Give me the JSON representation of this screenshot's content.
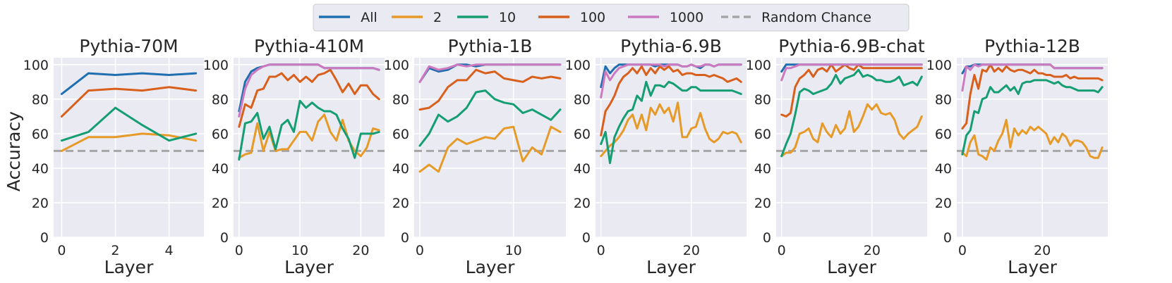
{
  "chart_data": {
    "type": "line",
    "ylabel": "Accuracy",
    "xlabel": "Layer",
    "ylim": [
      0,
      104
    ],
    "yticks": [
      0,
      20,
      40,
      60,
      80,
      100
    ],
    "grid": true,
    "legend_position": "top-center",
    "baseline": {
      "name": "Random Chance",
      "value": 50,
      "color": "#a6a6a6",
      "style": "dashed"
    },
    "series_styles": [
      {
        "key": "all",
        "name": "All",
        "color": "#1f6fb0"
      },
      {
        "key": "s2",
        "name": "2",
        "color": "#e69a28"
      },
      {
        "key": "s10",
        "name": "10",
        "color": "#149e72"
      },
      {
        "key": "s100",
        "name": "100",
        "color": "#d8601c"
      },
      {
        "key": "s1000",
        "name": "1000",
        "color": "#cc79c0"
      }
    ],
    "panels": [
      {
        "title": "Pythia-70M",
        "xlim": [
          -0.3,
          5.3
        ],
        "xticks": [
          0,
          2,
          4
        ],
        "x": [
          0,
          1,
          2,
          3,
          4,
          5
        ],
        "series": {
          "all": [
            83,
            95,
            94,
            95,
            94,
            95
          ],
          "s2": [
            50,
            58,
            58,
            60,
            59,
            56
          ],
          "s10": [
            56,
            61,
            75,
            65,
            56,
            60
          ],
          "s100": [
            70,
            85,
            86,
            85,
            87,
            85
          ],
          "s1000": null
        }
      },
      {
        "title": "Pythia-410M",
        "xlim": [
          -0.9,
          23.9
        ],
        "xticks": [
          0,
          10,
          20
        ],
        "x": [
          0,
          1,
          2,
          3,
          4,
          5,
          6,
          7,
          8,
          9,
          10,
          11,
          12,
          13,
          14,
          15,
          16,
          17,
          18,
          19,
          20,
          21,
          22,
          23
        ],
        "series": {
          "all": [
            73,
            90,
            96,
            98,
            99,
            100,
            100,
            100,
            100,
            100,
            100,
            100,
            100,
            100,
            98,
            98,
            98,
            98,
            98,
            98,
            98,
            98,
            98,
            97
          ],
          "s2": [
            46,
            48,
            49,
            66,
            50,
            61,
            50,
            51,
            51,
            56,
            61,
            61,
            56,
            67,
            71,
            61,
            56,
            68,
            56,
            50,
            47,
            52,
            63,
            62
          ],
          "s10": [
            45,
            66,
            67,
            72,
            57,
            64,
            51,
            65,
            68,
            61,
            79,
            75,
            78,
            75,
            73,
            73,
            71,
            63,
            57,
            46,
            60,
            60,
            60,
            61
          ],
          "s100": [
            64,
            77,
            75,
            85,
            86,
            93,
            93,
            95,
            91,
            94,
            90,
            93,
            90,
            94,
            95,
            97,
            91,
            84,
            89,
            83,
            88,
            88,
            83,
            80
          ],
          "s1000": [
            70,
            86,
            94,
            97,
            99,
            100,
            100,
            100,
            100,
            100,
            100,
            100,
            100,
            100,
            98,
            98,
            98,
            98,
            98,
            98,
            98,
            98,
            98,
            97
          ]
        }
      },
      {
        "title": "Pythia-1B",
        "xlim": [
          -0.6,
          15.6
        ],
        "xticks": [
          0,
          10
        ],
        "x": [
          0,
          1,
          2,
          3,
          4,
          5,
          6,
          7,
          8,
          9,
          10,
          11,
          12,
          13,
          14,
          15
        ],
        "series": {
          "all": [
            90,
            98,
            96,
            97,
            100,
            100,
            99,
            100,
            100,
            100,
            100,
            100,
            100,
            100,
            100,
            100
          ],
          "s2": [
            38,
            42,
            38,
            52,
            57,
            54,
            56,
            58,
            57,
            63,
            64,
            44,
            52,
            48,
            64,
            61
          ],
          "s10": [
            53,
            60,
            71,
            67,
            70,
            75,
            84,
            85,
            80,
            78,
            77,
            72,
            74,
            71,
            68,
            74
          ],
          "s100": [
            74,
            75,
            79,
            87,
            91,
            91,
            97,
            95,
            96,
            92,
            91,
            90,
            93,
            92,
            93,
            92
          ],
          "s1000": [
            90,
            99,
            97,
            98,
            100,
            99,
            100,
            100,
            100,
            100,
            100,
            100,
            100,
            100,
            100,
            100
          ]
        }
      },
      {
        "title": "Pythia-6.9B",
        "xlim": [
          -1.2,
          32.2
        ],
        "xticks": [
          0,
          20
        ],
        "x": [
          0,
          1,
          2,
          3,
          4,
          5,
          6,
          7,
          8,
          9,
          10,
          11,
          12,
          13,
          14,
          15,
          16,
          17,
          18,
          19,
          20,
          21,
          22,
          23,
          24,
          25,
          26,
          27,
          28,
          29,
          30,
          31
        ],
        "series": {
          "all": [
            87,
            99,
            95,
            98,
            100,
            100,
            100,
            100,
            100,
            100,
            100,
            100,
            99,
            100,
            100,
            100,
            100,
            100,
            99,
            99,
            100,
            99,
            98,
            100,
            100,
            99,
            100,
            100,
            100,
            100,
            100,
            100
          ],
          "s2": [
            47,
            50,
            53,
            55,
            58,
            62,
            68,
            71,
            63,
            71,
            62,
            75,
            71,
            77,
            72,
            75,
            67,
            78,
            58,
            58,
            63,
            64,
            72,
            63,
            57,
            55,
            57,
            61,
            60,
            61,
            60,
            55
          ],
          "s10": [
            54,
            61,
            43,
            58,
            64,
            69,
            73,
            74,
            82,
            79,
            90,
            82,
            88,
            88,
            87,
            90,
            89,
            87,
            85,
            85,
            87,
            87,
            85,
            85,
            85,
            85,
            85,
            85,
            85,
            85,
            84,
            83
          ],
          "s100": [
            59,
            73,
            77,
            82,
            89,
            93,
            95,
            98,
            95,
            99,
            94,
            98,
            95,
            99,
            97,
            99,
            96,
            97,
            94,
            95,
            95,
            94,
            94,
            94,
            93,
            94,
            93,
            92,
            90,
            91,
            92,
            90
          ],
          "s1000": [
            81,
            96,
            91,
            95,
            98,
            99,
            100,
            100,
            100,
            100,
            100,
            100,
            100,
            100,
            99,
            100,
            100,
            100,
            99,
            99,
            100,
            99,
            99,
            100,
            100,
            99,
            100,
            100,
            100,
            100,
            100,
            100
          ]
        }
      },
      {
        "title": "Pythia-6.9B-chat",
        "xlim": [
          -1.2,
          32.2
        ],
        "xticks": [
          0,
          20
        ],
        "x": [
          0,
          1,
          2,
          3,
          4,
          5,
          6,
          7,
          8,
          9,
          10,
          11,
          12,
          13,
          14,
          15,
          16,
          17,
          18,
          19,
          20,
          21,
          22,
          23,
          24,
          25,
          26,
          27,
          28,
          29,
          30,
          31
        ],
        "series": {
          "all": [
            96,
            100,
            100,
            100,
            100,
            100,
            100,
            100,
            100,
            100,
            100,
            100,
            100,
            100,
            100,
            100,
            100,
            100,
            100,
            100,
            100,
            100,
            100,
            100,
            100,
            100,
            100,
            100,
            100,
            100,
            100,
            100
          ],
          "s2": [
            47,
            49,
            49,
            52,
            60,
            61,
            63,
            57,
            55,
            66,
            61,
            58,
            65,
            60,
            63,
            73,
            61,
            64,
            70,
            77,
            74,
            77,
            72,
            71,
            72,
            68,
            60,
            57,
            60,
            62,
            64,
            70
          ],
          "s10": [
            47,
            54,
            60,
            71,
            84,
            86,
            85,
            83,
            84,
            85,
            86,
            89,
            94,
            89,
            92,
            93,
            94,
            97,
            93,
            94,
            93,
            91,
            91,
            90,
            90,
            91,
            93,
            88,
            89,
            90,
            88,
            93
          ],
          "s100": [
            71,
            70,
            72,
            87,
            92,
            94,
            97,
            93,
            97,
            98,
            96,
            100,
            96,
            98,
            100,
            98,
            97,
            100,
            98,
            98,
            98,
            98,
            98,
            98,
            98,
            98,
            98,
            98,
            98,
            98,
            98,
            98
          ],
          "s1000": [
            91,
            98,
            98,
            99,
            100,
            100,
            100,
            100,
            100,
            100,
            100,
            100,
            100,
            100,
            100,
            100,
            100,
            100,
            100,
            100,
            100,
            100,
            100,
            100,
            100,
            100,
            100,
            100,
            100,
            100,
            100,
            100
          ]
        }
      },
      {
        "title": "Pythia-12B",
        "xlim": [
          -1.4,
          36.4
        ],
        "xticks": [
          0,
          20
        ],
        "x": [
          0,
          1,
          2,
          3,
          4,
          5,
          6,
          7,
          8,
          9,
          10,
          11,
          12,
          13,
          14,
          15,
          16,
          17,
          18,
          19,
          20,
          21,
          22,
          23,
          24,
          25,
          26,
          27,
          28,
          29,
          30,
          31,
          32,
          33,
          34,
          35
        ],
        "series": {
          "all": [
            95,
            99,
            99,
            100,
            100,
            100,
            100,
            100,
            100,
            100,
            100,
            100,
            100,
            100,
            100,
            100,
            100,
            100,
            100,
            100,
            100,
            100,
            100,
            98,
            98,
            98,
            98,
            98,
            98,
            98,
            98,
            98,
            98,
            98,
            98,
            98
          ],
          "s2": [
            49,
            47,
            55,
            59,
            48,
            47,
            45,
            52,
            50,
            56,
            60,
            68,
            52,
            63,
            59,
            62,
            60,
            64,
            62,
            64,
            62,
            60,
            54,
            58,
            55,
            60,
            58,
            53,
            56,
            56,
            55,
            52,
            47,
            46,
            46,
            52
          ],
          "s10": [
            48,
            59,
            62,
            73,
            72,
            80,
            81,
            87,
            84,
            84,
            86,
            88,
            85,
            87,
            83,
            89,
            90,
            90,
            91,
            91,
            91,
            91,
            90,
            89,
            90,
            88,
            87,
            87,
            86,
            85,
            85,
            85,
            85,
            85,
            84,
            87
          ],
          "s100": [
            63,
            66,
            83,
            94,
            86,
            97,
            96,
            100,
            96,
            98,
            96,
            99,
            97,
            96,
            97,
            97,
            96,
            95,
            97,
            95,
            95,
            94,
            94,
            93,
            93,
            93,
            94,
            92,
            93,
            92,
            92,
            92,
            92,
            92,
            92,
            91
          ],
          "s1000": [
            85,
            99,
            97,
            100,
            99,
            100,
            100,
            100,
            100,
            100,
            100,
            100,
            100,
            100,
            100,
            100,
            100,
            100,
            100,
            100,
            100,
            100,
            100,
            98,
            98,
            98,
            98,
            98,
            98,
            98,
            98,
            98,
            98,
            98,
            98,
            98
          ]
        }
      }
    ]
  }
}
